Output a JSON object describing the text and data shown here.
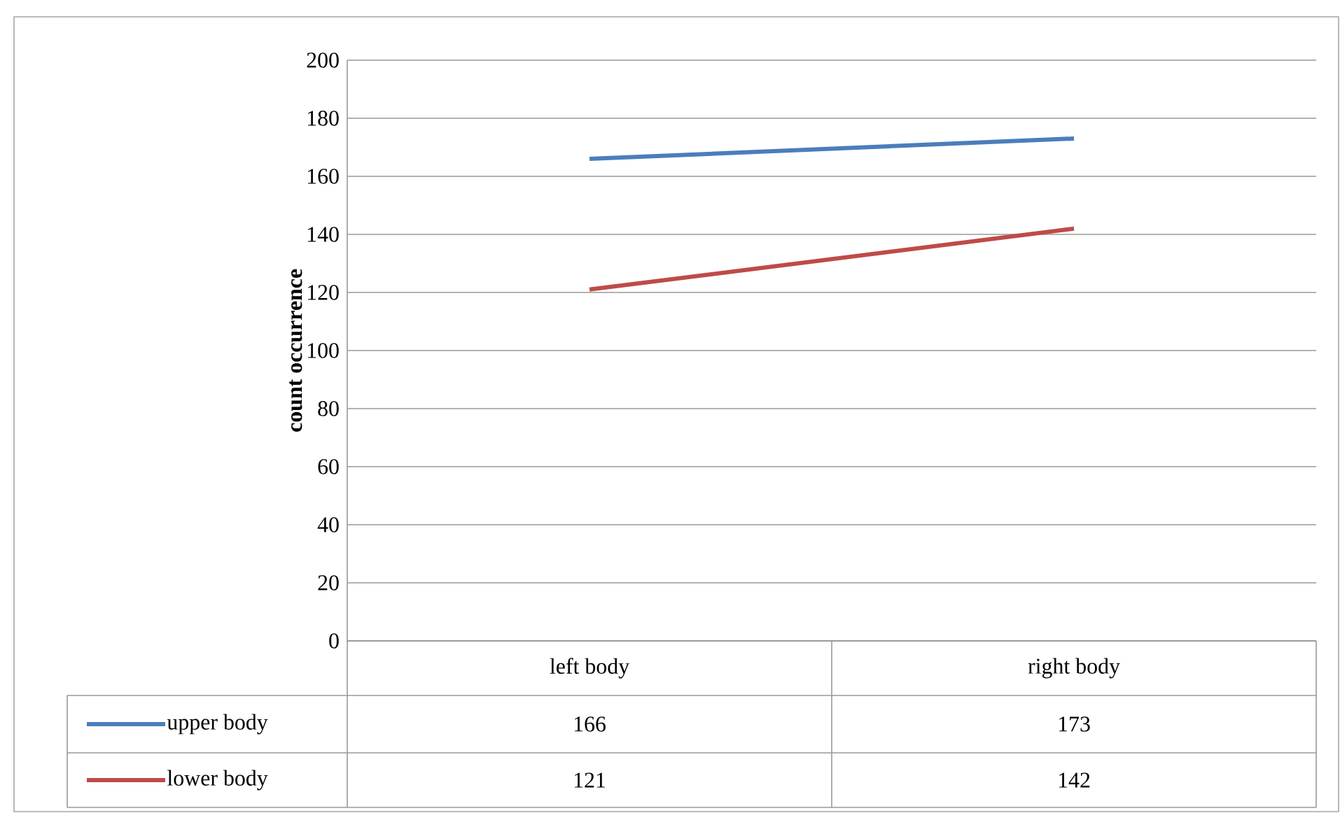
{
  "chart_data": {
    "type": "line",
    "ylabel": "count occurrence",
    "categories": [
      "left body",
      "right body"
    ],
    "series": [
      {
        "name": "upper body",
        "color": "#4a7ebb",
        "values": [
          166,
          173
        ]
      },
      {
        "name": "lower body",
        "color": "#be4b48",
        "values": [
          121,
          142
        ]
      }
    ],
    "ylim": [
      0,
      200
    ],
    "yticks": [
      0,
      20,
      40,
      60,
      80,
      100,
      120,
      140,
      160,
      180,
      200
    ],
    "grid": "y",
    "legend": "bottom",
    "data_labels": true,
    "marker": "none",
    "line_style": "solid"
  }
}
